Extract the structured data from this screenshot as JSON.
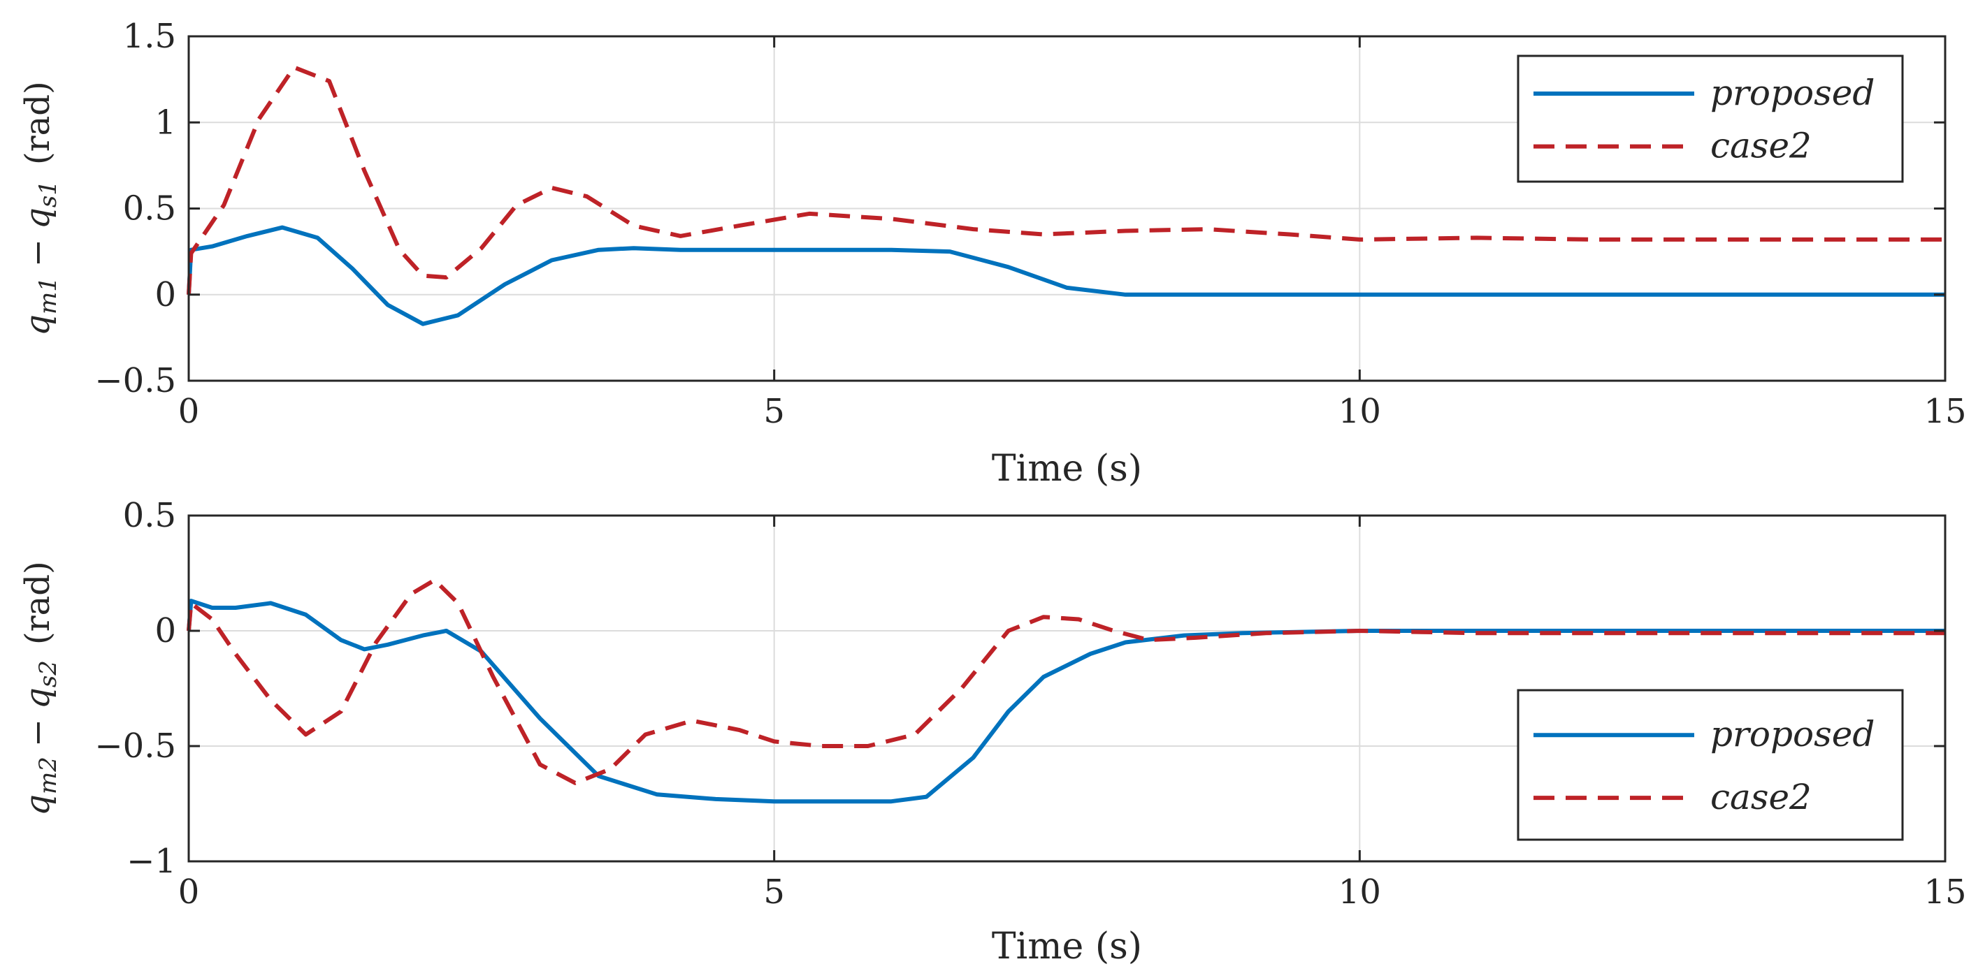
{
  "chart_data": [
    {
      "type": "line",
      "xlabel": "Time (s)",
      "ylabel": {
        "main": "q",
        "sub1": "m1",
        "minus": "−",
        "sub2": "s1",
        "unit": "(rad)"
      },
      "xlim": [
        0,
        15
      ],
      "ylim": [
        -0.5,
        1.5
      ],
      "xticks": [
        0,
        5,
        10,
        15
      ],
      "xtick_labels": [
        "0",
        "5",
        "10",
        "15"
      ],
      "yticks": [
        -0.5,
        0,
        0.5,
        1,
        1.5
      ],
      "ytick_labels": [
        "−0.5",
        "0",
        "0.5",
        "1",
        "1.5"
      ],
      "grid": true,
      "legend_position": "top-right",
      "series": [
        {
          "name": "proposed",
          "color": "#0072BD",
          "dash": "solid",
          "x": [
            0,
            0.02,
            0.2,
            0.5,
            0.8,
            1.1,
            1.4,
            1.7,
            2.0,
            2.3,
            2.7,
            3.1,
            3.5,
            3.8,
            4.2,
            5,
            6,
            6.5,
            7,
            7.5,
            8,
            9,
            10,
            12,
            15
          ],
          "y": [
            0,
            0.26,
            0.28,
            0.34,
            0.39,
            0.33,
            0.15,
            -0.06,
            -0.17,
            -0.12,
            0.06,
            0.2,
            0.26,
            0.27,
            0.26,
            0.26,
            0.26,
            0.25,
            0.16,
            0.04,
            0,
            0,
            0,
            0,
            0
          ]
        },
        {
          "name": "case2",
          "color": "#BE2227",
          "dash": "dashed",
          "x": [
            0,
            0.02,
            0.3,
            0.6,
            0.9,
            1.2,
            1.5,
            1.8,
            2.0,
            2.2,
            2.5,
            2.8,
            3.1,
            3.4,
            3.8,
            4.2,
            4.7,
            5.3,
            6,
            6.7,
            7.3,
            8,
            8.7,
            9.4,
            10,
            11,
            12,
            13,
            15
          ],
          "y": [
            0,
            0.24,
            0.52,
            1.02,
            1.32,
            1.24,
            0.72,
            0.26,
            0.11,
            0.1,
            0.27,
            0.52,
            0.62,
            0.57,
            0.4,
            0.34,
            0.4,
            0.47,
            0.44,
            0.38,
            0.35,
            0.37,
            0.38,
            0.35,
            0.32,
            0.33,
            0.32,
            0.32,
            0.32
          ]
        }
      ]
    },
    {
      "type": "line",
      "xlabel": "Time (s)",
      "ylabel": {
        "main": "q",
        "sub1": "m2",
        "minus": "−",
        "sub2": "s2",
        "unit": "(rad)"
      },
      "xlim": [
        0,
        15
      ],
      "ylim": [
        -1,
        0.5
      ],
      "xticks": [
        0,
        5,
        10,
        15
      ],
      "xtick_labels": [
        "0",
        "5",
        "10",
        "15"
      ],
      "yticks": [
        -1,
        -0.5,
        0,
        0.5
      ],
      "ytick_labels": [
        "−1",
        "−0.5",
        "0",
        "0.5"
      ],
      "grid": true,
      "legend_position": "bottom-right",
      "series": [
        {
          "name": "proposed",
          "color": "#0072BD",
          "dash": "solid",
          "x": [
            0,
            0.02,
            0.2,
            0.4,
            0.7,
            1.0,
            1.3,
            1.5,
            1.7,
            2.0,
            2.2,
            2.5,
            3.0,
            3.5,
            4.0,
            4.5,
            5.0,
            5.5,
            6.0,
            6.3,
            6.7,
            7.0,
            7.3,
            7.7,
            8.0,
            8.5,
            9,
            10,
            12,
            15
          ],
          "y": [
            0,
            0.13,
            0.1,
            0.1,
            0.12,
            0.07,
            -0.04,
            -0.08,
            -0.06,
            -0.02,
            0,
            -0.09,
            -0.38,
            -0.63,
            -0.71,
            -0.73,
            -0.74,
            -0.74,
            -0.74,
            -0.72,
            -0.55,
            -0.35,
            -0.2,
            -0.1,
            -0.05,
            -0.02,
            -0.01,
            0,
            0,
            0
          ]
        },
        {
          "name": "case2",
          "color": "#BE2227",
          "dash": "dashed",
          "x": [
            0,
            0.02,
            0.2,
            0.4,
            0.7,
            1.0,
            1.3,
            1.6,
            1.9,
            2.1,
            2.3,
            2.6,
            3.0,
            3.3,
            3.6,
            3.9,
            4.3,
            4.7,
            5.0,
            5.4,
            5.8,
            6.2,
            6.6,
            7.0,
            7.3,
            7.6,
            7.9,
            8.2,
            8.6,
            9.2,
            10,
            11,
            12,
            15
          ],
          "y": [
            0,
            0.12,
            0.05,
            -0.1,
            -0.3,
            -0.45,
            -0.35,
            -0.05,
            0.16,
            0.22,
            0.12,
            -0.2,
            -0.58,
            -0.66,
            -0.6,
            -0.45,
            -0.39,
            -0.43,
            -0.48,
            -0.5,
            -0.5,
            -0.45,
            -0.25,
            0.0,
            0.06,
            0.05,
            0.0,
            -0.04,
            -0.03,
            -0.01,
            0,
            -0.01,
            -0.01,
            -0.01
          ]
        }
      ]
    }
  ]
}
